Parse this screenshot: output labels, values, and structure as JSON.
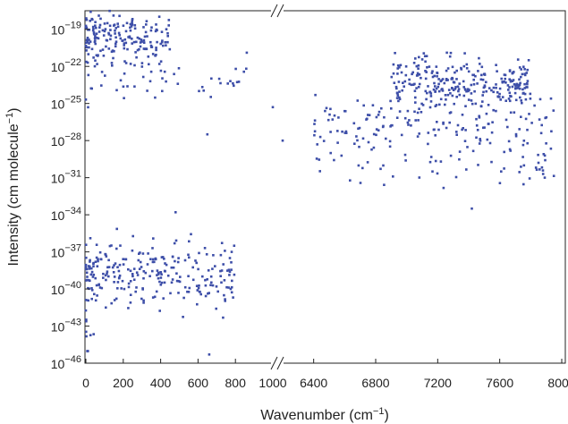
{
  "chart_data": {
    "type": "scatter",
    "xlabel": "Wavenumber (cm",
    "xlabel_sup": "−1",
    "xlabel_end": ")",
    "ylabel": "Intensity (cm molecule",
    "ylabel_sup": "−1",
    "ylabel_end": ")",
    "y_scale": "log",
    "y_exponent_range": [
      -46,
      -17.5
    ],
    "y_tick_exponents": [
      "−19",
      "−22",
      "−25",
      "−28",
      "−31",
      "−34",
      "−37",
      "−40",
      "−43",
      "−46"
    ],
    "y_tick_base": "10",
    "x_axis_broken": true,
    "x_segments": [
      {
        "range": [
          0,
          1000
        ],
        "tick_labels": [
          "0",
          "200",
          "400",
          "600",
          "800",
          "1000"
        ],
        "tick_values": [
          0,
          200,
          400,
          600,
          800,
          1000
        ]
      },
      {
        "range": [
          6200,
          8000
        ],
        "tick_labels": [
          "6400",
          "6800",
          "7200",
          "7600",
          "8000"
        ],
        "tick_values": [
          6400,
          6800,
          7200,
          7600,
          8000
        ]
      }
    ],
    "marker_color": "#3d4ea8",
    "clusters": [
      {
        "segment": 0,
        "x_range": [
          0,
          450
        ],
        "log10_center": -19.6,
        "spread": 1.6,
        "count": 180
      },
      {
        "segment": 0,
        "x_range": [
          0,
          900
        ],
        "log10_center": -23.0,
        "spread": 1.7,
        "count": 55
      },
      {
        "segment": 0,
        "x_range": [
          0,
          800
        ],
        "log10_center": -38.8,
        "spread": 2.3,
        "count": 260
      },
      {
        "segment": 0,
        "x_range": [
          0,
          60
        ],
        "log10_center": -44.0,
        "spread": 1.2,
        "count": 8
      },
      {
        "segment": 1,
        "x_range": [
          6900,
          7800
        ],
        "log10_center": -23.3,
        "spread": 1.6,
        "count": 260
      },
      {
        "segment": 1,
        "x_range": [
          6400,
          7950
        ],
        "log10_center": -26.5,
        "spread": 2.0,
        "count": 170
      },
      {
        "segment": 1,
        "x_range": [
          6350,
          7950
        ],
        "log10_center": -30.0,
        "spread": 1.5,
        "count": 55
      }
    ],
    "sample_points": [
      {
        "x": 150,
        "log10_y": -18.7
      },
      {
        "x": 220,
        "log10_y": -18.5
      },
      {
        "x": 1000,
        "log10_y": -25.3
      },
      {
        "x": 650,
        "log10_y": -27.5
      },
      {
        "x": 6200,
        "log10_y": -28.0
      },
      {
        "x": 7280,
        "log10_y": -21.2
      },
      {
        "x": 7420,
        "log10_y": -33.5
      },
      {
        "x": 660,
        "log10_y": -45.3
      },
      {
        "x": 480,
        "log10_y": -33.8
      },
      {
        "x": 780,
        "log10_y": -37.0
      }
    ]
  }
}
